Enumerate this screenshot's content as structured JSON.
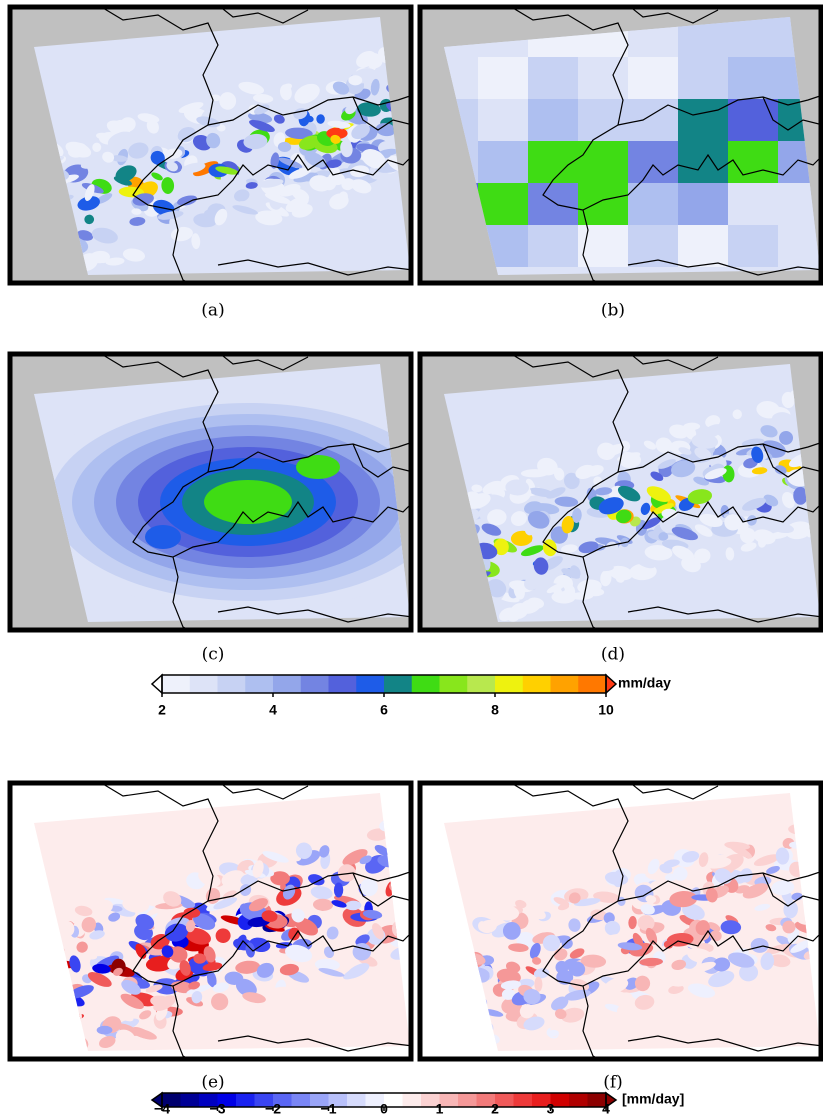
{
  "panels": [
    {
      "label": "(a)"
    },
    {
      "label": "(b)"
    },
    {
      "label": "(c)"
    },
    {
      "label": "(d)"
    },
    {
      "label": "(e)"
    },
    {
      "label": "(f)"
    }
  ],
  "colorbar_precip": {
    "unit": "mm/day",
    "range": [
      2,
      10
    ],
    "ticks": [
      2,
      4,
      6,
      8,
      10
    ],
    "colors": [
      "#ffffff",
      "#eef1fb",
      "#dde3f7",
      "#c7d2f3",
      "#aebff0",
      "#93a6ea",
      "#7384e2",
      "#5361dc",
      "#1e5ce8",
      "#128486",
      "#3fdc14",
      "#88e61c",
      "#b8e84e",
      "#eef20f",
      "#ffd000",
      "#ffa200",
      "#ff7800",
      "#ff3a14"
    ]
  },
  "colorbar_diff": {
    "unit": "[mm/day]",
    "range": [
      -4,
      4
    ],
    "ticks": [
      {
        "value": -4,
        "label": "−4"
      },
      {
        "value": -3,
        "label": "−3"
      },
      {
        "value": -2,
        "label": "−2"
      },
      {
        "value": -1,
        "label": "−1"
      },
      0,
      1,
      2,
      3,
      4
    ],
    "colors": [
      "#00006e",
      "#000096",
      "#0000c0",
      "#0000e6",
      "#1a22f0",
      "#3a45f2",
      "#5a66f4",
      "#7a86f6",
      "#9aa5f8",
      "#b8c0fa",
      "#d6dbfc",
      "#eef0fe",
      "#ffffff",
      "#fdecec",
      "#fbd2d2",
      "#f8b6b6",
      "#f59898",
      "#f27a7a",
      "#f05a5a",
      "#ee3a3a",
      "#e81e1e",
      "#d00000",
      "#b00000",
      "#8c0000"
    ]
  }
}
